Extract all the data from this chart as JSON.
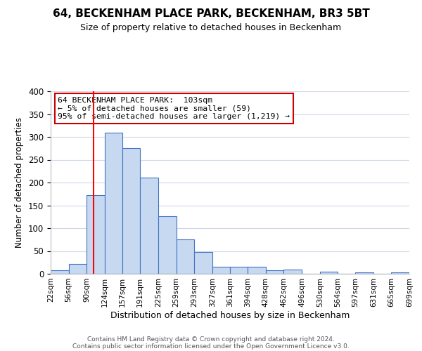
{
  "title": "64, BECKENHAM PLACE PARK, BECKENHAM, BR3 5BT",
  "subtitle": "Size of property relative to detached houses in Beckenham",
  "xlabel": "Distribution of detached houses by size in Beckenham",
  "ylabel": "Number of detached properties",
  "bar_edges": [
    22,
    56,
    90,
    124,
    157,
    191,
    225,
    259,
    293,
    327,
    361,
    394,
    428,
    462,
    496,
    530,
    564,
    597,
    631,
    665,
    699
  ],
  "bar_heights": [
    8,
    22,
    173,
    310,
    276,
    211,
    126,
    75,
    48,
    16,
    16,
    15,
    8,
    10,
    0,
    5,
    0,
    3,
    0,
    3
  ],
  "bar_color": "#c6d9f0",
  "bar_edge_color": "#4472c4",
  "tick_labels": [
    "22sqm",
    "56sqm",
    "90sqm",
    "124sqm",
    "157sqm",
    "191sqm",
    "225sqm",
    "259sqm",
    "293sqm",
    "327sqm",
    "361sqm",
    "394sqm",
    "428sqm",
    "462sqm",
    "496sqm",
    "530sqm",
    "564sqm",
    "597sqm",
    "631sqm",
    "665sqm",
    "699sqm"
  ],
  "vline_x": 103,
  "vline_color": "#ff0000",
  "annotation_title": "64 BECKENHAM PLACE PARK:  103sqm",
  "annotation_line1": "← 5% of detached houses are smaller (59)",
  "annotation_line2": "95% of semi-detached houses are larger (1,219) →",
  "annotation_box_color": "#ffffff",
  "annotation_box_edge": "#cc0000",
  "ylim": [
    0,
    400
  ],
  "yticks": [
    0,
    50,
    100,
    150,
    200,
    250,
    300,
    350,
    400
  ],
  "footer1": "Contains HM Land Registry data © Crown copyright and database right 2024.",
  "footer2": "Contains public sector information licensed under the Open Government Licence v3.0.",
  "background_color": "#ffffff",
  "grid_color": "#d0d8e8"
}
